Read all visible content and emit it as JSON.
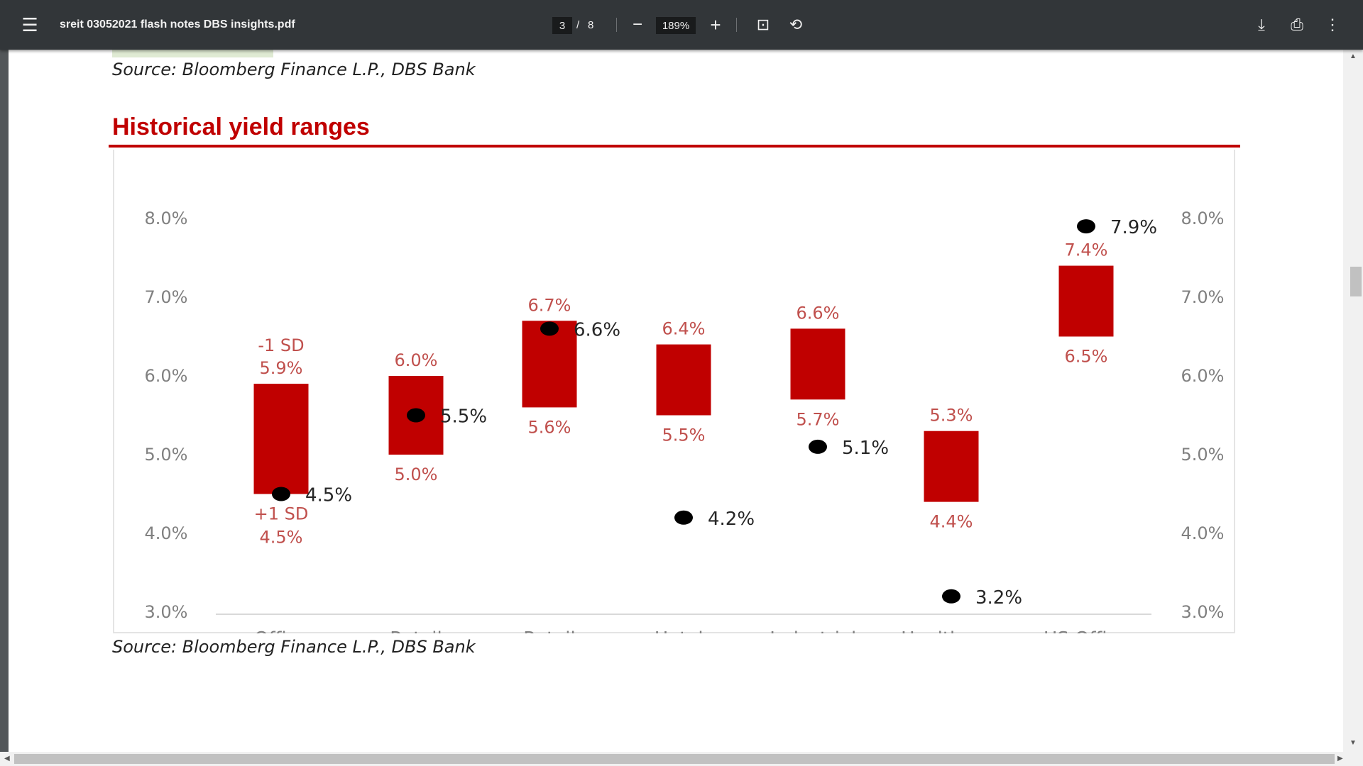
{
  "toolbar": {
    "title": "sreit 03052021 flash notes DBS insights.pdf",
    "page_current": "3",
    "page_sep": "/",
    "page_total": "8",
    "zoom": "189%",
    "icons": [
      "menu-icon",
      "zoom-out-icon",
      "zoom-in-icon",
      "fit-page-icon",
      "rotate-icon",
      "download-icon",
      "print-icon",
      "more-icon"
    ]
  },
  "document": {
    "source_top": "Source: Bloomberg Finance L.P., DBS Bank",
    "heading": "Historical yield ranges",
    "source_bottom": "Source: Bloomberg Finance L.P., DBS Bank"
  },
  "chart_data": {
    "type": "floating-bar",
    "title": "",
    "yticks": [
      "8.0%",
      "7.0%",
      "6.0%",
      "5.0%",
      "4.0%",
      "3.0%"
    ],
    "ylim": [
      3.0,
      8.0
    ],
    "dual_axis": true,
    "categories": [
      "Office",
      "Retail",
      "Retail Overseas",
      "Hotels",
      "Industrials",
      "Healthcare",
      "US Office"
    ],
    "low": [
      4.5,
      5.0,
      5.6,
      5.5,
      5.7,
      4.4,
      6.5
    ],
    "high": [
      5.9,
      6.0,
      6.7,
      6.4,
      6.6,
      5.3,
      7.4
    ],
    "current": [
      4.5,
      5.5,
      6.6,
      4.2,
      5.1,
      3.2,
      7.9
    ],
    "low_labels": [
      "4.5%",
      "5.0%",
      "5.6%",
      "5.5%",
      "5.7%",
      "4.4%",
      "6.5%"
    ],
    "high_labels": [
      "5.9%",
      "6.0%",
      "6.7%",
      "6.4%",
      "6.6%",
      "5.3%",
      "7.4%"
    ],
    "current_labels": [
      "4.5%",
      "5.5%",
      "6.6%",
      "4.2%",
      "5.1%",
      "3.2%",
      "7.9%"
    ],
    "annotations": {
      "high": "-1 SD",
      "low": "+1 SD"
    },
    "colors": {
      "bar": "#c00000",
      "label": "#c0504d",
      "dot": "#000000",
      "axis": "#808080"
    }
  }
}
